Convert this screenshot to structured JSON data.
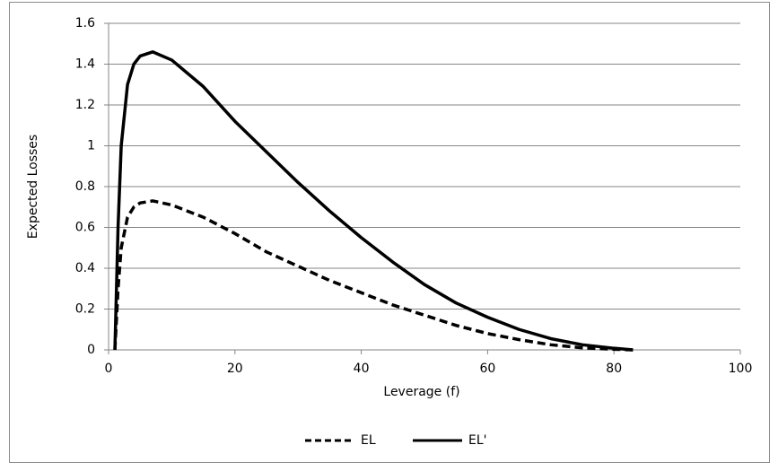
{
  "chart_data": {
    "type": "line",
    "x_label": "Leverage (f)",
    "y_label": "Expected Losses",
    "x": [
      1,
      1.5,
      2,
      3,
      4,
      5,
      7,
      10,
      15,
      20,
      25,
      30,
      35,
      40,
      45,
      50,
      55,
      60,
      65,
      70,
      75,
      80,
      83
    ],
    "series": [
      {
        "name": "EL",
        "color": "#000000",
        "style": "dashed",
        "values": [
          0,
          0.3,
          0.5,
          0.65,
          0.7,
          0.72,
          0.73,
          0.71,
          0.65,
          0.57,
          0.48,
          0.41,
          0.34,
          0.28,
          0.22,
          0.17,
          0.12,
          0.08,
          0.05,
          0.025,
          0.01,
          0.003,
          0
        ]
      },
      {
        "name": "EL'",
        "color": "#000000",
        "style": "solid",
        "values": [
          0,
          0.6,
          1.0,
          1.3,
          1.4,
          1.44,
          1.46,
          1.42,
          1.29,
          1.12,
          0.97,
          0.82,
          0.68,
          0.55,
          0.43,
          0.32,
          0.23,
          0.16,
          0.1,
          0.055,
          0.025,
          0.008,
          0
        ]
      }
    ],
    "xlim": [
      0,
      100
    ],
    "xticks": [
      0,
      20,
      40,
      60,
      80,
      100
    ],
    "ylim": [
      0,
      1.6
    ],
    "yticks": [
      0,
      0.2,
      0.4,
      0.6,
      0.8,
      1,
      1.2,
      1.4,
      1.6
    ],
    "grid": true,
    "legend": "bottom"
  }
}
